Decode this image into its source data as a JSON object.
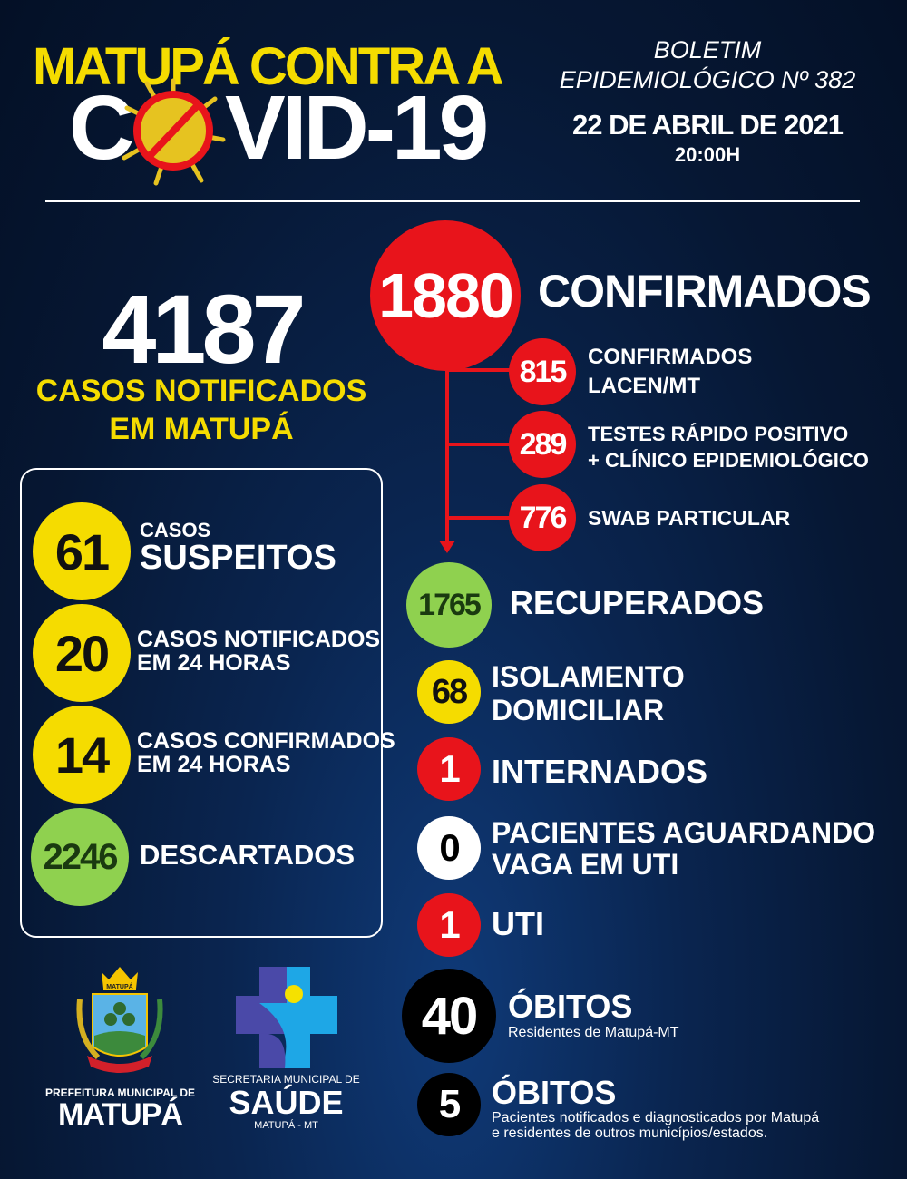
{
  "header": {
    "title_line1": "MATUPÁ CONTRA A",
    "title_c": "C",
    "title_rest": "VID-19",
    "boletim": "BOLETIM",
    "epi": "EPIDEMIOLÓGICO Nº 382",
    "date": "22 DE ABRIL DE 2021",
    "time": "20:00H"
  },
  "notified": {
    "value": "4187",
    "label1": "CASOS NOTIFICADOS",
    "label2": "EM MATUPÁ"
  },
  "box": [
    {
      "value": "61",
      "small": "CASOS",
      "big": "SUSPEITOS"
    },
    {
      "value": "20",
      "line1": "CASOS NOTIFICADOS",
      "line2": "EM 24 HORAS"
    },
    {
      "value": "14",
      "line1": "CASOS CONFIRMADOS",
      "line2": "EM 24 HORAS"
    },
    {
      "value": "2246",
      "label": "DESCARTADOS"
    }
  ],
  "confirmed": {
    "value": "1880",
    "label": "CONFIRMADOS",
    "breakdown": [
      {
        "value": "815",
        "line1": "CONFIRMADOS",
        "line2": "LACEN/MT"
      },
      {
        "value": "289",
        "line1": "TESTES RÁPIDO POSITIVO",
        "line2": "+ CLÍNICO EPIDEMIOLÓGICO"
      },
      {
        "value": "776",
        "line1": "SWAB PARTICULAR"
      }
    ]
  },
  "recovered": {
    "value": "1765",
    "label": "RECUPERADOS"
  },
  "isolation": {
    "value": "68",
    "line1": "ISOLAMENTO",
    "line2": "DOMICILIAR"
  },
  "hospitalized": {
    "value": "1",
    "label": "INTERNADOS"
  },
  "waiting": {
    "value": "0",
    "line1": "PACIENTES AGUARDANDO",
    "line2": "VAGA EM UTI"
  },
  "icu": {
    "value": "1",
    "label": "UTI"
  },
  "deaths": {
    "value": "40",
    "label": "ÓBITOS",
    "note": "Residentes de Matupá-MT"
  },
  "deaths_other": {
    "value": "5",
    "label": "ÓBITOS",
    "note1": "Pacientes notificados e diagnosticados por Matupá",
    "note2": "e residentes de outros municípios/estados."
  },
  "logos": {
    "pref_line1": "PREFEITURA MUNICIPAL DE",
    "pref_line2": "MATUPÁ",
    "crest_text": "MATUPÁ",
    "saude_line1": "SECRETARIA MUNICIPAL DE",
    "saude_line2": "SAÚDE",
    "saude_line3": "MATUPÁ - MT"
  },
  "colors": {
    "red": "#e8141b",
    "yellow": "#f5dc00",
    "green": "#8fd14f",
    "background": "#061733"
  }
}
